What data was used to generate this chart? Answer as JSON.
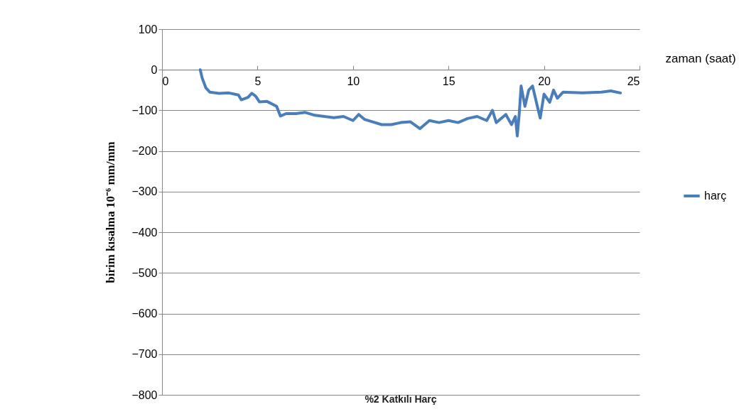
{
  "chart_data": {
    "type": "line",
    "title": "%2 Katkılı Harç",
    "xlabel": "zaman (saat)",
    "ylabel": "birim kısalma 10⁻⁶ mm/mm",
    "x": [
      2.0,
      2.1,
      2.3,
      2.5,
      3,
      3.5,
      4,
      4.15,
      4.5,
      4.7,
      4.9,
      5.1,
      5.5,
      6,
      6.2,
      6.5,
      7,
      7.5,
      8,
      9,
      9.5,
      10,
      10.3,
      10.6,
      11,
      11.5,
      12,
      12.5,
      13,
      13.5,
      14,
      14.5,
      15,
      15.5,
      16,
      16.5,
      17,
      17.3,
      17.5,
      18,
      18.3,
      18.5,
      18.6,
      18.7,
      18.8,
      19,
      19.2,
      19.4,
      19.6,
      19.8,
      20,
      20.3,
      20.5,
      20.7,
      21,
      22,
      23,
      23.5,
      24
    ],
    "series": [
      {
        "name": "harç",
        "color": "#4a7ebb",
        "values": [
          0,
          -20,
          -45,
          -55,
          -58,
          -57,
          -62,
          -74,
          -68,
          -58,
          -65,
          -79,
          -78,
          -90,
          -114,
          -108,
          -108,
          -105,
          -112,
          -118,
          -115,
          -125,
          -110,
          -122,
          -128,
          -135,
          -135,
          -130,
          -128,
          -145,
          -125,
          -130,
          -125,
          -130,
          -120,
          -115,
          -125,
          -100,
          -130,
          -110,
          -135,
          -115,
          -163,
          -110,
          -40,
          -90,
          -50,
          -40,
          -80,
          -119,
          -60,
          -80,
          -50,
          -70,
          -55,
          -57,
          -55,
          -52,
          -57
        ]
      }
    ],
    "xlim": [
      0,
      25
    ],
    "xticks": [
      0,
      5,
      10,
      15,
      20,
      25
    ],
    "ylim": [
      -800,
      100
    ],
    "yticks": [
      -800,
      -700,
      -600,
      -500,
      -400,
      -300,
      -200,
      -100,
      0,
      100
    ],
    "grid": "y",
    "legend": "right",
    "marker": "none",
    "line_style": "solid"
  }
}
